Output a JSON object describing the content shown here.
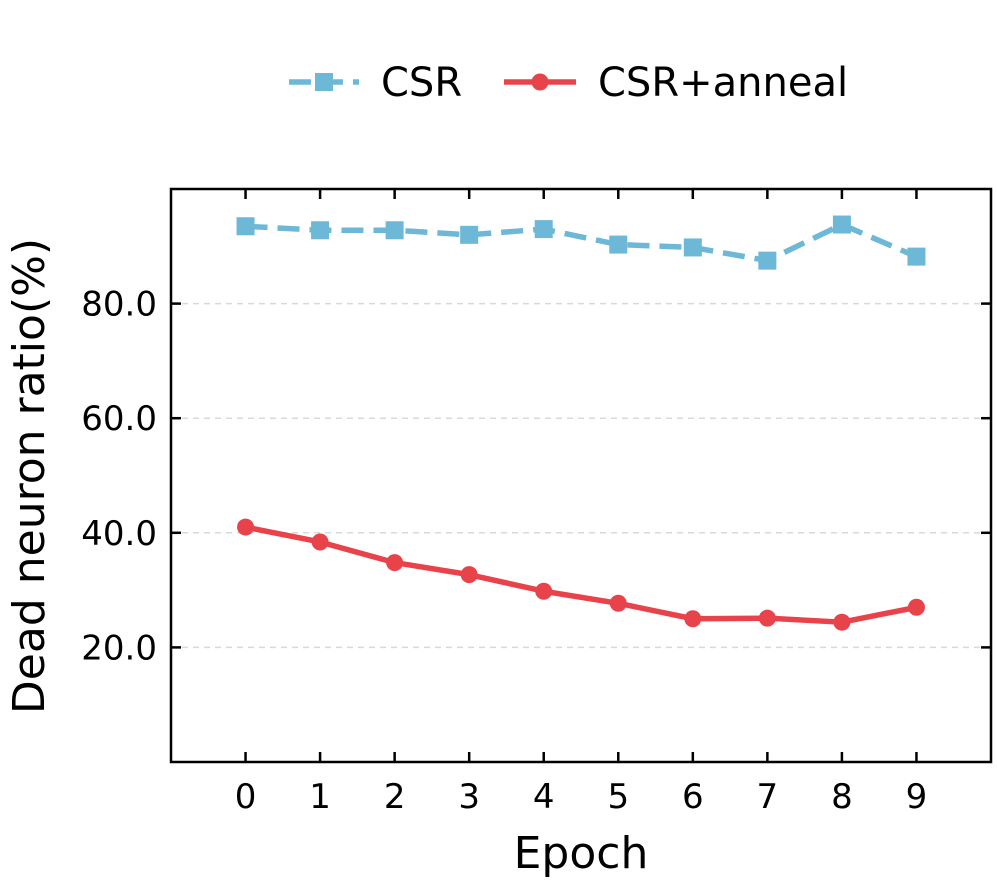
{
  "chart_data": {
    "type": "line",
    "x": [
      0,
      1,
      2,
      3,
      4,
      5,
      6,
      7,
      8,
      9
    ],
    "xlabel": "Epoch",
    "ylabel": "Dead neuron ratio(%)",
    "xticks": [
      "0",
      "1",
      "2",
      "3",
      "4",
      "5",
      "6",
      "7",
      "8",
      "9"
    ],
    "yticks": [
      "20.0",
      "40.0",
      "60.0",
      "80.0"
    ],
    "xlim": [
      -1,
      10
    ],
    "ylim": [
      0,
      100
    ],
    "grid": "horizontal dashed",
    "legend_position": "top-center",
    "series": [
      {
        "name": "CSR",
        "color": "#6cb8d6",
        "line_style": "dashed",
        "marker": "square",
        "values": [
          93.5,
          92.8,
          92.8,
          92.0,
          93.0,
          90.3,
          89.8,
          87.5,
          93.8,
          88.2
        ]
      },
      {
        "name": "CSR+anneal",
        "color": "#e8434a",
        "line_style": "solid",
        "marker": "circle",
        "values": [
          41.0,
          38.4,
          34.8,
          32.7,
          29.8,
          27.7,
          25.0,
          25.1,
          24.4,
          27.0
        ]
      }
    ]
  }
}
